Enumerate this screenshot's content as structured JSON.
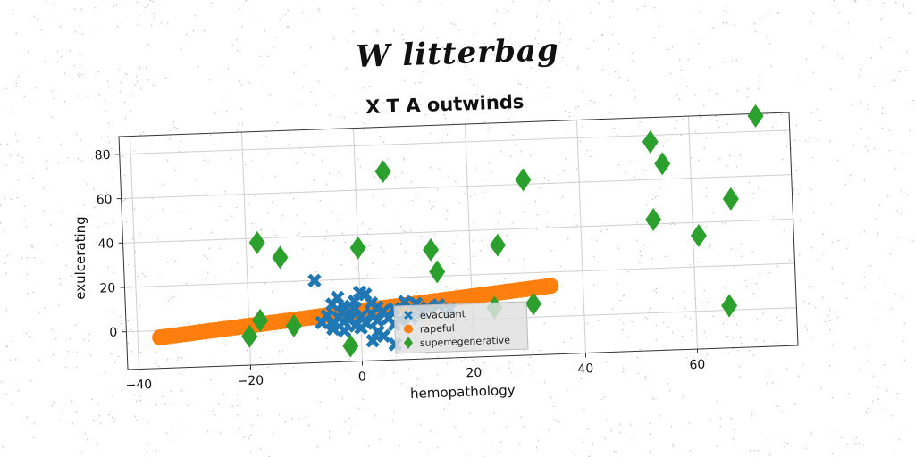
{
  "suptitle": "W litterbag",
  "chart_data": {
    "type": "scatter",
    "title": "X T A outwinds",
    "xlabel": "hemopathology",
    "ylabel": "exulcerating",
    "xlim": [
      -42,
      78
    ],
    "ylim": [
      -17,
      88
    ],
    "xticks": [
      -40,
      -20,
      0,
      20,
      40,
      60
    ],
    "yticks": [
      0,
      20,
      40,
      60,
      80
    ],
    "grid": true,
    "legend_loc": "lower center",
    "series": [
      {
        "name": "evacuant",
        "marker": "x",
        "color": "#1f77b4",
        "points": [
          [
            -8,
            20
          ],
          [
            -5,
            9
          ],
          [
            -4,
            12
          ],
          [
            -3,
            8
          ],
          [
            -2,
            5
          ],
          [
            -1,
            10
          ],
          [
            0,
            14
          ],
          [
            1,
            13
          ],
          [
            2,
            9
          ],
          [
            3,
            7
          ],
          [
            -6,
            4
          ],
          [
            -4,
            3
          ],
          [
            -2,
            2
          ],
          [
            0,
            3
          ],
          [
            2,
            4
          ],
          [
            4,
            5
          ],
          [
            6,
            6
          ],
          [
            8,
            9
          ],
          [
            10,
            8
          ],
          [
            12,
            6
          ],
          [
            -7,
            1
          ],
          [
            -5,
            0
          ],
          [
            -3,
            1
          ],
          [
            -1,
            -1
          ],
          [
            1,
            0
          ],
          [
            3,
            1
          ],
          [
            5,
            2
          ],
          [
            7,
            1
          ],
          [
            -5,
            -2
          ],
          [
            -3,
            -3
          ],
          [
            0,
            -2
          ],
          [
            3,
            -4
          ],
          [
            6,
            -1
          ],
          [
            9,
            2
          ],
          [
            11,
            4
          ],
          [
            14,
            7
          ],
          [
            16,
            5
          ],
          [
            4,
            -6
          ],
          [
            6,
            -10
          ],
          [
            2,
            -8
          ],
          [
            -3,
            6
          ],
          [
            -1,
            7
          ]
        ]
      },
      {
        "name": "rapeful",
        "marker": "o",
        "color": "#ff7f0e",
        "line": {
          "x_start": -36,
          "x_end": 35,
          "slope": 0.24,
          "intercept": 5.6
        }
      },
      {
        "name": "superregenerative",
        "marker": "d",
        "color": "#2ca02c",
        "points": [
          [
            -18,
            38
          ],
          [
            -14,
            31
          ],
          [
            5,
            68
          ],
          [
            0,
            34
          ],
          [
            13,
            32
          ],
          [
            14,
            22
          ],
          [
            25,
            33
          ],
          [
            30,
            62
          ],
          [
            53,
            77
          ],
          [
            55,
            67
          ],
          [
            53,
            42
          ],
          [
            61,
            34
          ],
          [
            67,
            50
          ],
          [
            72,
            87
          ],
          [
            66,
            2
          ],
          [
            -18,
            3
          ],
          [
            -20,
            -4
          ],
          [
            -12,
            0
          ],
          [
            -2,
            -10
          ],
          [
            24,
            5
          ],
          [
            31,
            6
          ]
        ]
      }
    ]
  }
}
